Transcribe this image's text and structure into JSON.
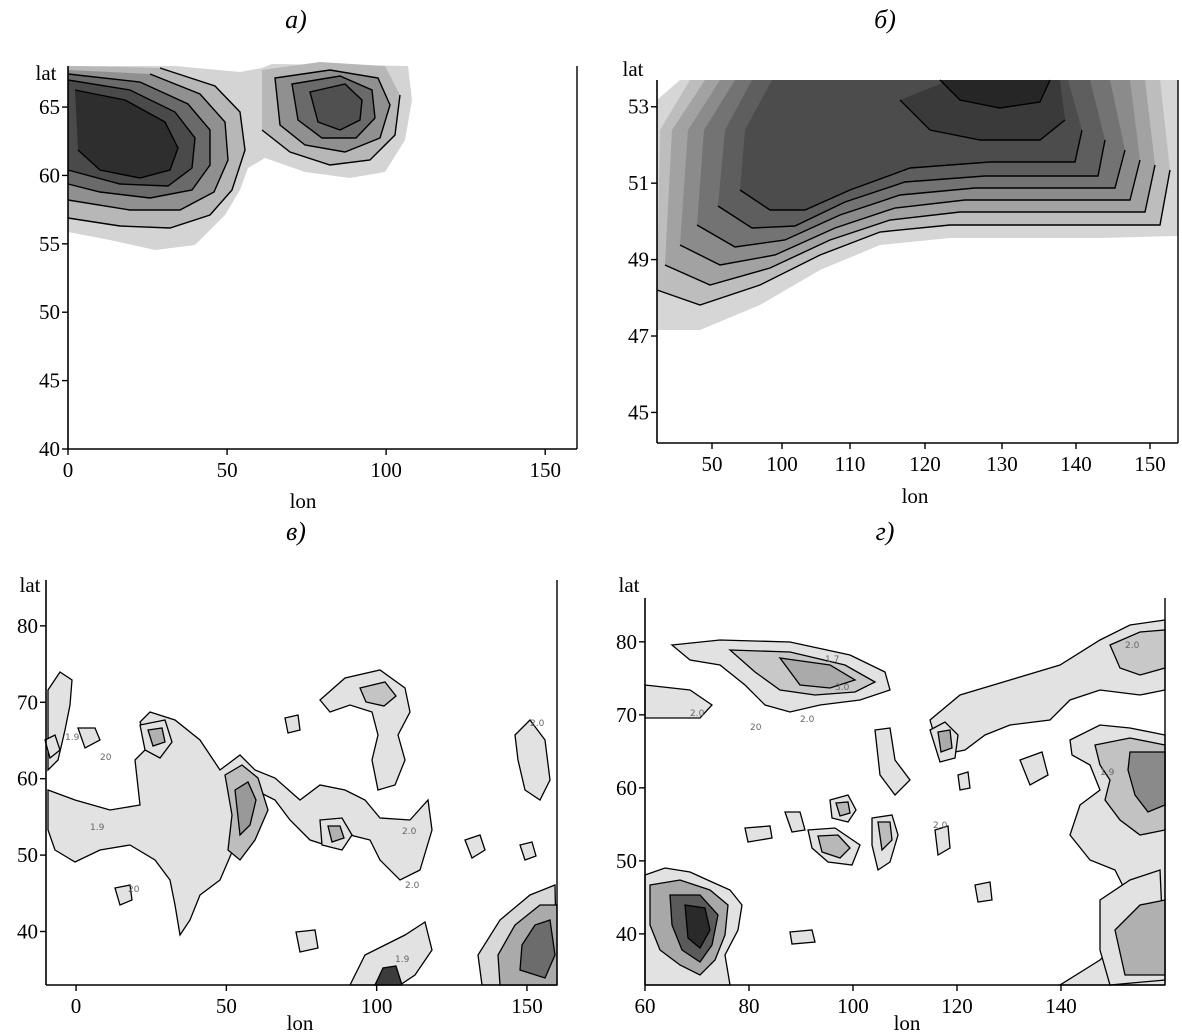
{
  "chart_data": [
    {
      "type": "heatmap",
      "panel_label": "а)",
      "xlabel": "lon",
      "ylabel": "lat",
      "xlim": [
        0,
        160
      ],
      "ylim": [
        40,
        68
      ],
      "x_ticks": [
        "0",
        "50",
        "100",
        "150"
      ],
      "x_tick_values": [
        0,
        50,
        100,
        150
      ],
      "y_ticks": [
        "40",
        "45",
        "50",
        "55",
        "60",
        "65"
      ],
      "y_tick_values": [
        40,
        45,
        50,
        55,
        60,
        65
      ],
      "fill_light": "#d4d4d4",
      "fill_dark": "#2e2e2e",
      "grid": false
    },
    {
      "type": "heatmap",
      "panel_label": "б)",
      "xlabel": "lon",
      "ylabel": "lat",
      "x_ticks": [
        "50",
        "100",
        "110",
        "120",
        "130",
        "140",
        "150"
      ],
      "y_ticks": [
        "45",
        "47",
        "49",
        "51",
        "53"
      ],
      "y_tick_values": [
        45,
        47,
        49,
        51,
        53
      ],
      "ylim": [
        44.2,
        53.7
      ],
      "fill_light": "#d4d4d4",
      "fill_dark": "#222222",
      "grid": false
    },
    {
      "type": "heatmap",
      "panel_label": "в)",
      "xlabel": "lon",
      "ylabel": "lat",
      "xlim": [
        -10,
        160
      ],
      "ylim": [
        33,
        86
      ],
      "x_ticks": [
        "0",
        "50",
        "100",
        "150"
      ],
      "x_tick_values": [
        0,
        50,
        100,
        150
      ],
      "y_ticks": [
        "40",
        "50",
        "60",
        "70",
        "80"
      ],
      "y_tick_values": [
        40,
        50,
        60,
        70,
        80
      ],
      "contour_labels": [
        "2.0",
        "1.9",
        "20",
        "2.0",
        "1.9",
        "2.0",
        "2.0",
        "1.9"
      ],
      "fill_light": "#e2e2e2",
      "fill_dark": "#444444",
      "grid": false
    },
    {
      "type": "heatmap",
      "panel_label": "г)",
      "xlabel": "lon",
      "ylabel": "lat",
      "xlim": [
        60,
        160
      ],
      "ylim": [
        33,
        86
      ],
      "x_ticks": [
        "60",
        "80",
        "100",
        "120",
        "140"
      ],
      "x_tick_values": [
        60,
        80,
        100,
        120,
        140
      ],
      "y_ticks": [
        "40",
        "50",
        "60",
        "70",
        "80"
      ],
      "y_tick_values": [
        40,
        50,
        60,
        70,
        80
      ],
      "contour_labels": [
        "2.0",
        "1.7",
        "3.0",
        "20",
        "2.0",
        "2.0",
        "1.9",
        "2.0"
      ],
      "fill_light": "#e2e2e2",
      "fill_dark": "#444444",
      "grid": false
    }
  ]
}
